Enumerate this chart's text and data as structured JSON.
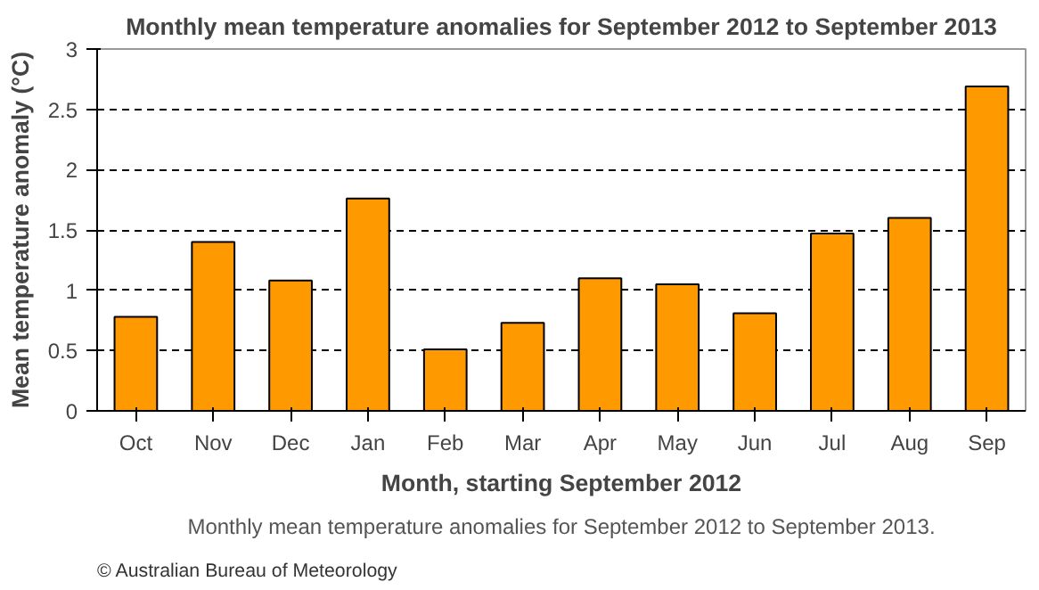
{
  "chart_data": {
    "type": "bar",
    "title": "Monthly mean temperature anomalies for September 2012 to September 2013",
    "xlabel": "Month, starting September 2012",
    "ylabel": "Mean temperature anomaly (°C)",
    "categories": [
      "Oct",
      "Nov",
      "Dec",
      "Jan",
      "Feb",
      "Mar",
      "Apr",
      "May",
      "Jun",
      "Jul",
      "Aug",
      "Sep"
    ],
    "values": [
      0.78,
      1.4,
      1.08,
      1.76,
      0.51,
      0.73,
      1.1,
      1.05,
      0.81,
      1.47,
      1.6,
      2.69
    ],
    "color": "#ff9900",
    "ylim": [
      0,
      3
    ],
    "yticks": [
      0,
      0.5,
      1,
      1.5,
      2,
      2.5,
      3
    ],
    "grid": "y",
    "annotations": [
      "© Australian Bureau of Meteorology",
      "Monthly mean temperature anomalies for September 2012 to September 2013."
    ]
  }
}
